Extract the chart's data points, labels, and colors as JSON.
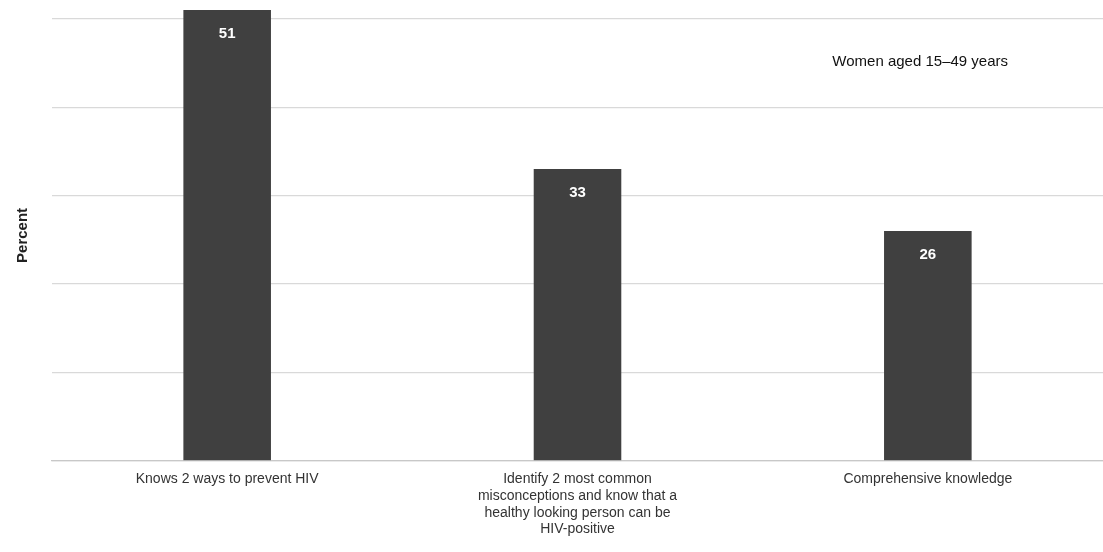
{
  "chart_data": {
    "type": "bar",
    "ylabel": "Percent",
    "categories": [
      "Knows 2 ways to prevent HIV",
      "Identify 2 most common misconceptions and know that a healthy looking person can be HIV-positive",
      "Comprehensive knowledge"
    ],
    "values": [
      51,
      33,
      26
    ],
    "color": "#404040",
    "ylim": [
      0,
      51
    ],
    "yticks": [
      {
        "value": 0,
        "label": null
      },
      {
        "value": 10,
        "label": null
      },
      {
        "value": 20,
        "label": null
      },
      {
        "value": 30,
        "label": null
      },
      {
        "value": 40,
        "label": null
      },
      {
        "value": 50,
        "label": null
      }
    ],
    "tick_labels": "x",
    "grid": "y",
    "data_labels": true,
    "legend": false,
    "annotations": [
      "Women aged 15–49 years"
    ]
  }
}
